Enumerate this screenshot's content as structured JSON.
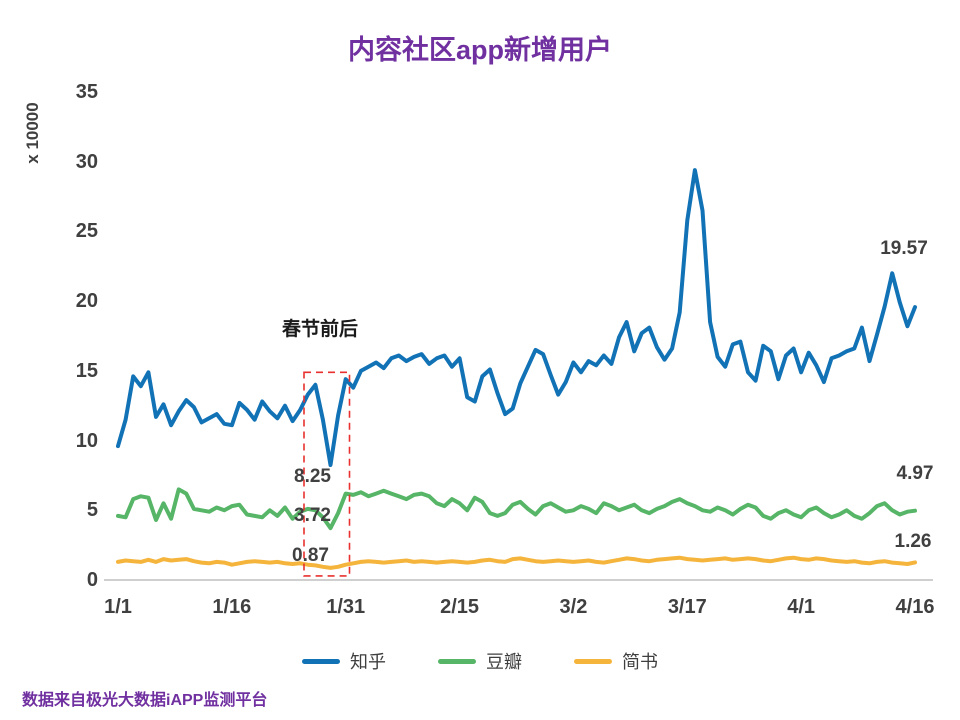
{
  "title": "内容社区app新增用户",
  "footer": {
    "source_note": "数据来自极光大数据iAPP监测平台"
  },
  "colors": {
    "title": "#7030A0",
    "axis_text": "#404040",
    "annotation_text": "#404040",
    "spring_label": "#1A1A1A",
    "annotation_box": "#E8312F",
    "axis_line": "#BFBFBF"
  },
  "chart_data": {
    "type": "line",
    "title": "内容社区app新增用户",
    "xlabel": "",
    "ylabel": "x 10000",
    "ylim": [
      0,
      35
    ],
    "y_ticks": [
      0,
      5,
      10,
      15,
      20,
      25,
      30,
      35
    ],
    "x_tick_labels": [
      "1/1",
      "1/16",
      "1/31",
      "2/15",
      "3/2",
      "3/17",
      "4/1",
      "4/16"
    ],
    "x_tick_days": [
      0,
      15,
      30,
      45,
      60,
      75,
      90,
      105
    ],
    "grid": false,
    "legend_position": "bottom",
    "series": [
      {
        "name": "知乎",
        "color": "#1272B6",
        "values": [
          9.6,
          11.5,
          14.6,
          13.9,
          14.9,
          11.7,
          12.6,
          11.1,
          12.1,
          12.9,
          12.4,
          11.3,
          11.6,
          11.9,
          11.2,
          11.1,
          12.7,
          12.2,
          11.5,
          12.8,
          12.1,
          11.6,
          12.5,
          11.4,
          12.2,
          13.3,
          14.0,
          11.5,
          8.25,
          11.8,
          14.4,
          13.8,
          15.0,
          15.3,
          15.6,
          15.2,
          15.9,
          16.1,
          15.7,
          16.0,
          16.2,
          15.5,
          15.9,
          16.1,
          15.3,
          15.9,
          13.1,
          12.8,
          14.6,
          15.1,
          13.4,
          11.9,
          12.3,
          14.1,
          15.3,
          16.5,
          16.2,
          14.7,
          13.3,
          14.2,
          15.6,
          14.9,
          15.7,
          15.4,
          16.1,
          15.5,
          17.4,
          18.5,
          16.4,
          17.7,
          18.1,
          16.7,
          15.8,
          16.6,
          19.2,
          25.8,
          29.4,
          26.5,
          18.5,
          16.0,
          15.3,
          16.9,
          17.1,
          14.9,
          14.3,
          16.8,
          16.4,
          14.4,
          16.1,
          16.6,
          14.9,
          16.3,
          15.4,
          14.2,
          15.9,
          16.1,
          16.4,
          16.6,
          18.1,
          15.7,
          17.6,
          19.6,
          22.0,
          19.9,
          18.2,
          19.57
        ]
      },
      {
        "name": "豆瓣",
        "color": "#56B567",
        "values": [
          4.6,
          4.5,
          5.8,
          6.0,
          5.9,
          4.3,
          5.5,
          4.4,
          6.5,
          6.2,
          5.1,
          5.0,
          4.9,
          5.2,
          5.0,
          5.3,
          5.4,
          4.7,
          4.6,
          4.5,
          5.0,
          4.6,
          5.2,
          4.4,
          4.9,
          5.1,
          5.0,
          4.5,
          3.72,
          4.8,
          6.2,
          6.1,
          6.3,
          6.0,
          6.2,
          6.4,
          6.2,
          6.0,
          5.8,
          6.1,
          6.2,
          6.0,
          5.5,
          5.3,
          5.8,
          5.5,
          5.0,
          5.9,
          5.6,
          4.8,
          4.6,
          4.8,
          5.4,
          5.6,
          5.1,
          4.7,
          5.3,
          5.5,
          5.2,
          4.9,
          5.0,
          5.3,
          5.1,
          4.8,
          5.5,
          5.3,
          5.0,
          5.2,
          5.4,
          5.0,
          4.8,
          5.1,
          5.3,
          5.6,
          5.8,
          5.5,
          5.3,
          5.0,
          4.9,
          5.2,
          5.0,
          4.7,
          5.1,
          5.4,
          5.2,
          4.6,
          4.4,
          4.8,
          5.0,
          4.7,
          4.5,
          5.0,
          5.2,
          4.8,
          4.5,
          4.7,
          5.0,
          4.6,
          4.4,
          4.8,
          5.3,
          5.5,
          5.0,
          4.7,
          4.9,
          4.97
        ]
      },
      {
        "name": "简书",
        "color": "#F5B43C",
        "values": [
          1.3,
          1.4,
          1.35,
          1.3,
          1.45,
          1.3,
          1.5,
          1.4,
          1.45,
          1.5,
          1.35,
          1.25,
          1.2,
          1.3,
          1.25,
          1.1,
          1.2,
          1.3,
          1.35,
          1.3,
          1.25,
          1.3,
          1.2,
          1.15,
          1.2,
          1.1,
          1.05,
          0.95,
          0.87,
          0.95,
          1.1,
          1.2,
          1.3,
          1.35,
          1.3,
          1.25,
          1.3,
          1.35,
          1.4,
          1.3,
          1.35,
          1.3,
          1.25,
          1.3,
          1.35,
          1.3,
          1.25,
          1.3,
          1.4,
          1.45,
          1.35,
          1.3,
          1.5,
          1.55,
          1.45,
          1.35,
          1.3,
          1.35,
          1.4,
          1.35,
          1.3,
          1.35,
          1.4,
          1.3,
          1.25,
          1.35,
          1.45,
          1.55,
          1.5,
          1.4,
          1.35,
          1.45,
          1.5,
          1.55,
          1.6,
          1.5,
          1.45,
          1.4,
          1.45,
          1.5,
          1.55,
          1.45,
          1.5,
          1.55,
          1.5,
          1.4,
          1.35,
          1.45,
          1.55,
          1.6,
          1.5,
          1.45,
          1.55,
          1.5,
          1.4,
          1.35,
          1.3,
          1.35,
          1.25,
          1.2,
          1.3,
          1.35,
          1.25,
          1.2,
          1.15,
          1.26
        ]
      }
    ],
    "annotations": {
      "spring_festival_label": "春节前后",
      "box_day_range": [
        24.5,
        30.5
      ],
      "box_value_range": [
        0.3,
        14.9
      ],
      "dip_labels": [
        {
          "text": "8.25",
          "series": "知乎"
        },
        {
          "text": "3.72",
          "series": "豆瓣"
        },
        {
          "text": "0.87",
          "series": "简书"
        }
      ],
      "end_labels": [
        {
          "text": "19.57",
          "series": "知乎"
        },
        {
          "text": "4.97",
          "series": "豆瓣"
        },
        {
          "text": "1.26",
          "series": "简书"
        }
      ]
    }
  }
}
